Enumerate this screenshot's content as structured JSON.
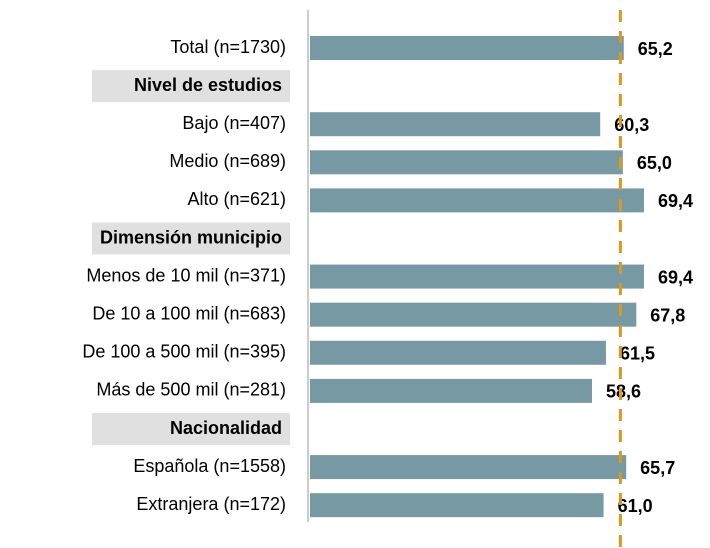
{
  "chart_data": {
    "type": "bar",
    "orientation": "horizontal",
    "categories": [
      "Total (n=1730)"
    ],
    "values": [
      65.2
    ],
    "value_labels": [
      "65,2"
    ],
    "groups": [
      {
        "name": "Nivel de estudios",
        "categories": [
          "Bajo (n=407)",
          "Medio (n=689)",
          "Alto (n=621)"
        ],
        "values": [
          60.3,
          65.0,
          69.4
        ],
        "value_labels": [
          "60,3",
          "65,0",
          "69,4"
        ]
      },
      {
        "name": "Dimensión municipio",
        "categories": [
          "Menos de 10 mil (n=371)",
          "De 10 a 100 mil (n=683)",
          "De 100 a 500 mil (n=395)",
          "Más de 500 mil (n=281)"
        ],
        "values": [
          69.4,
          67.8,
          61.5,
          58.6
        ],
        "value_labels": [
          "69,4",
          "67,8",
          "61,5",
          "58,6"
        ]
      },
      {
        "name": "Nacionalidad",
        "categories": [
          "Española (n=1558)",
          "Extranjera (n=172)"
        ],
        "values": [
          65.7,
          61.0
        ],
        "value_labels": [
          "65,7",
          "61,0"
        ]
      }
    ],
    "color": "#7799a3",
    "xlim": [
      0,
      80
    ],
    "reference_line": {
      "value": 64.5,
      "color": "#d99a1e"
    }
  }
}
